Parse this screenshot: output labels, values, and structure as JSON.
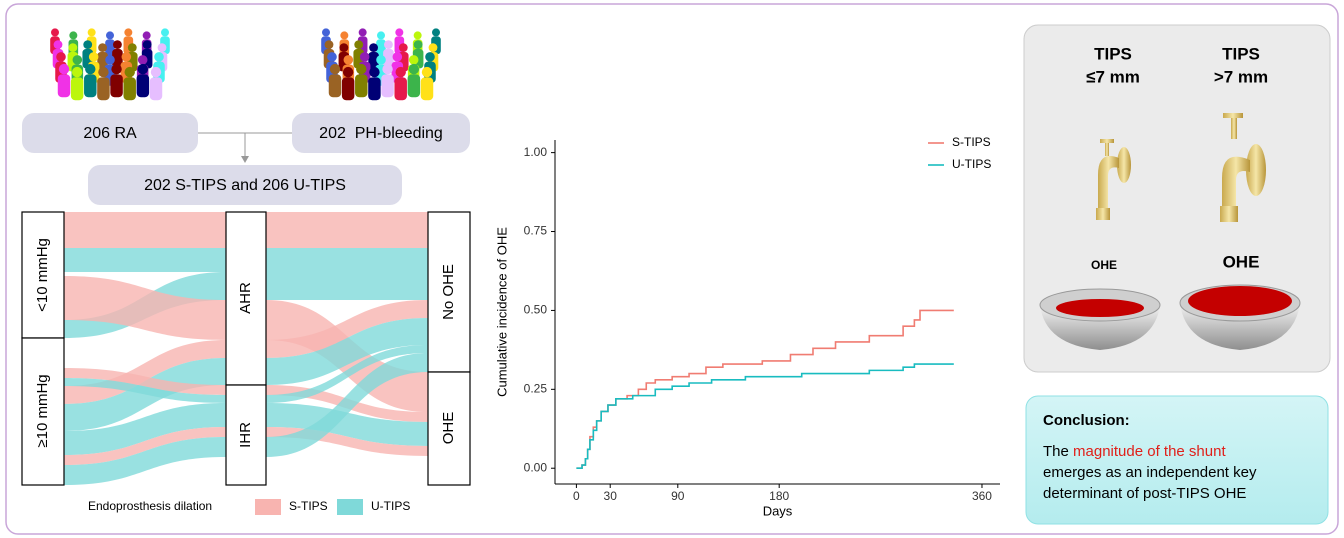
{
  "flow": {
    "source_a": "206 RA",
    "source_b": "202  PH-bleeding",
    "cohort": "202 S-TIPS and 206 U-TIPS"
  },
  "sankey": {
    "nodes": [
      "<10 mmHg",
      "≥10 mmHg",
      "AHR",
      "IHR",
      "No OHE",
      "OHE"
    ],
    "legend_title": "Endoprosthesis dilation",
    "legend": [
      "S-TIPS",
      "U-TIPS"
    ],
    "colors": [
      "#f8b4b0",
      "#7fd9d9"
    ]
  },
  "chart_data": {
    "type": "step",
    "xlabel": "Days",
    "ylabel": "Cumulative incidence of OHE",
    "xlim": [
      -19,
      376
    ],
    "ylim": [
      -0.05,
      1.04
    ],
    "xticks": [
      0,
      30,
      90,
      180,
      360
    ],
    "yticks": [
      {
        "value": 0,
        "label": "0.00"
      },
      {
        "value": 0.25,
        "label": "0.25"
      },
      {
        "value": 0.5,
        "label": "0.50"
      },
      {
        "value": 0.75,
        "label": "0.75"
      },
      {
        "value": 1,
        "label": "1.00"
      }
    ],
    "legend": "top-right",
    "series": [
      {
        "name": "S-TIPS",
        "color": "#f07c72",
        "x": [
          0,
          5,
          8,
          10,
          12,
          15,
          18,
          22,
          28,
          35,
          45,
          55,
          62,
          70,
          85,
          100,
          115,
          130,
          165,
          190,
          210,
          230,
          260,
          290,
          300,
          305,
          335
        ],
        "values": [
          0,
          0.01,
          0.03,
          0.06,
          0.1,
          0.13,
          0.15,
          0.18,
          0.2,
          0.22,
          0.23,
          0.25,
          0.27,
          0.28,
          0.29,
          0.3,
          0.32,
          0.33,
          0.34,
          0.36,
          0.38,
          0.4,
          0.42,
          0.45,
          0.47,
          0.5,
          0.5
        ]
      },
      {
        "name": "U-TIPS",
        "color": "#19bcc0",
        "x": [
          0,
          5,
          8,
          10,
          12,
          15,
          18,
          22,
          28,
          35,
          50,
          70,
          85,
          100,
          120,
          150,
          200,
          260,
          290,
          300,
          335
        ],
        "values": [
          0,
          0.01,
          0.03,
          0.06,
          0.09,
          0.12,
          0.15,
          0.18,
          0.2,
          0.22,
          0.23,
          0.25,
          0.26,
          0.27,
          0.28,
          0.29,
          0.3,
          0.31,
          0.32,
          0.33,
          0.33
        ]
      }
    ]
  },
  "infographic": {
    "left": [
      "TIPS",
      "≤7 mm"
    ],
    "right": [
      "TIPS",
      ">7 mm"
    ],
    "outcome_left": "OHE",
    "outcome_right": "OHE"
  },
  "conclusion": {
    "heading": "Conclusion:",
    "text": [
      "The ",
      "magnitude of the shunt",
      "emerges as an independent key",
      "determinant of post-TIPS OHE"
    ]
  }
}
